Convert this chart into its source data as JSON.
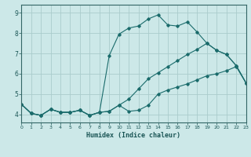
{
  "xlabel": "Humidex (Indice chaleur)",
  "background_color": "#cce8e8",
  "grid_color": "#aacccc",
  "line_color": "#1a6b6b",
  "xlim": [
    0,
    23
  ],
  "ylim": [
    3.6,
    9.4
  ],
  "yticks": [
    4,
    5,
    6,
    7,
    8,
    9
  ],
  "xticks": [
    0,
    1,
    2,
    3,
    4,
    5,
    6,
    7,
    8,
    9,
    10,
    11,
    12,
    13,
    14,
    15,
    16,
    17,
    18,
    19,
    20,
    21,
    22,
    23
  ],
  "line1_x": [
    0,
    1,
    2,
    3,
    4,
    5,
    6,
    7,
    8,
    9,
    10,
    11,
    12,
    13,
    14,
    15,
    16,
    17,
    18,
    19,
    20,
    21,
    22,
    23
  ],
  "line1_y": [
    4.5,
    4.05,
    3.95,
    4.25,
    4.1,
    4.1,
    4.2,
    3.95,
    4.1,
    6.9,
    7.95,
    8.25,
    8.35,
    8.7,
    8.9,
    8.4,
    8.35,
    8.55,
    8.05,
    7.5,
    7.15,
    6.95,
    6.4,
    5.55
  ],
  "line2_x": [
    0,
    1,
    2,
    3,
    4,
    5,
    6,
    7,
    8,
    9,
    10,
    11,
    12,
    13,
    14,
    15,
    16,
    17,
    18,
    19,
    20,
    21,
    22,
    23
  ],
  "line2_y": [
    4.5,
    4.05,
    3.95,
    4.25,
    4.1,
    4.1,
    4.2,
    3.95,
    4.1,
    4.15,
    4.45,
    4.15,
    4.2,
    4.45,
    5.0,
    5.2,
    5.35,
    5.5,
    5.7,
    5.9,
    6.0,
    6.15,
    6.35,
    5.55
  ],
  "line3_x": [
    0,
    1,
    2,
    3,
    4,
    5,
    6,
    7,
    8,
    9,
    10,
    11,
    12,
    13,
    14,
    15,
    16,
    17,
    18,
    19,
    20,
    21,
    22,
    23
  ],
  "line3_y": [
    4.5,
    4.05,
    3.95,
    4.25,
    4.1,
    4.1,
    4.2,
    3.95,
    4.1,
    4.15,
    4.45,
    4.75,
    5.25,
    5.75,
    6.05,
    6.35,
    6.65,
    6.95,
    7.2,
    7.5,
    7.15,
    6.95,
    6.4,
    5.55
  ]
}
